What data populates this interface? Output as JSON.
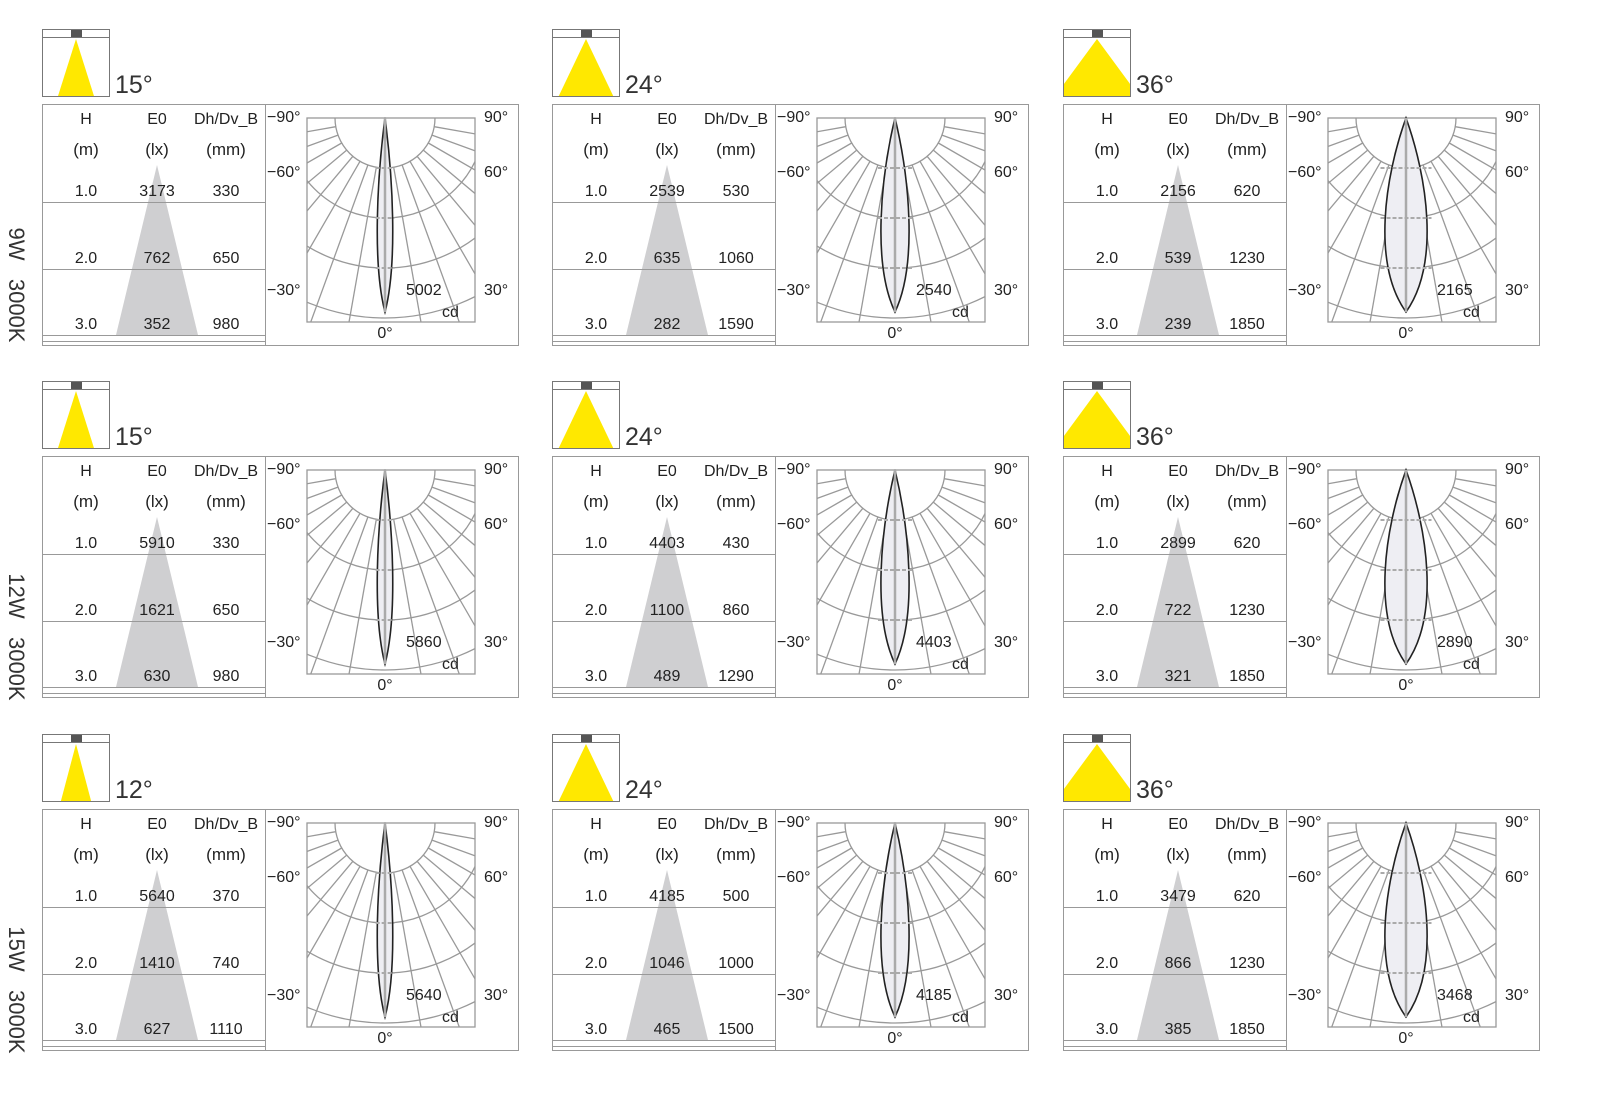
{
  "table_headers": {
    "h": "H",
    "h_unit": "(m)",
    "e0": "E0",
    "e0_unit": "(lx)",
    "d": "Dh/Dv_B",
    "d_unit": "(mm)"
  },
  "polar_labels": {
    "m90": "−90°",
    "p90": "90°",
    "m60": "−60°",
    "p60": "60°",
    "m30": "−30°",
    "p30": "30°",
    "zero": "0°",
    "unit": "cd"
  },
  "colors": {
    "beam": "#ffe800",
    "cone": "#cfcfd1",
    "lobe_fill": "#eeeef3"
  },
  "rows": [
    {
      "label": "9W   3000K",
      "panels": [
        {
          "angle": "15°",
          "beam_deg": 15,
          "peak_cd": "5002",
          "data": [
            [
              "1.0",
              "3173",
              "330"
            ],
            [
              "2.0",
              "762",
              "650"
            ],
            [
              "3.0",
              "352",
              "980"
            ]
          ]
        },
        {
          "angle": "24°",
          "beam_deg": 24,
          "peak_cd": "2540",
          "data": [
            [
              "1.0",
              "2539",
              "530"
            ],
            [
              "2.0",
              "635",
              "1060"
            ],
            [
              "3.0",
              "282",
              "1590"
            ]
          ]
        },
        {
          "angle": "36°",
          "beam_deg": 36,
          "peak_cd": "2165",
          "data": [
            [
              "1.0",
              "2156",
              "620"
            ],
            [
              "2.0",
              "539",
              "1230"
            ],
            [
              "3.0",
              "239",
              "1850"
            ]
          ]
        }
      ]
    },
    {
      "label": "12W   3000K",
      "panels": [
        {
          "angle": "15°",
          "beam_deg": 15,
          "peak_cd": "5860",
          "data": [
            [
              "1.0",
              "5910",
              "330"
            ],
            [
              "2.0",
              "1621",
              "650"
            ],
            [
              "3.0",
              "630",
              "980"
            ]
          ]
        },
        {
          "angle": "24°",
          "beam_deg": 24,
          "peak_cd": "4403",
          "data": [
            [
              "1.0",
              "4403",
              "430"
            ],
            [
              "2.0",
              "1100",
              "860"
            ],
            [
              "3.0",
              "489",
              "1290"
            ]
          ]
        },
        {
          "angle": "36°",
          "beam_deg": 36,
          "peak_cd": "2890",
          "data": [
            [
              "1.0",
              "2899",
              "620"
            ],
            [
              "2.0",
              "722",
              "1230"
            ],
            [
              "3.0",
              "321",
              "1850"
            ]
          ]
        }
      ]
    },
    {
      "label": "15W   3000K",
      "panels": [
        {
          "angle": "12°",
          "beam_deg": 12,
          "peak_cd": "5640",
          "data": [
            [
              "1.0",
              "5640",
              "370"
            ],
            [
              "2.0",
              "1410",
              "740"
            ],
            [
              "3.0",
              "627",
              "1110"
            ]
          ]
        },
        {
          "angle": "24°",
          "beam_deg": 24,
          "peak_cd": "4185",
          "data": [
            [
              "1.0",
              "4185",
              "500"
            ],
            [
              "2.0",
              "1046",
              "1000"
            ],
            [
              "3.0",
              "465",
              "1500"
            ]
          ]
        },
        {
          "angle": "36°",
          "beam_deg": 36,
          "peak_cd": "3468",
          "data": [
            [
              "1.0",
              "3479",
              "620"
            ],
            [
              "2.0",
              "866",
              "1230"
            ],
            [
              "3.0",
              "385",
              "1850"
            ]
          ]
        }
      ]
    }
  ]
}
